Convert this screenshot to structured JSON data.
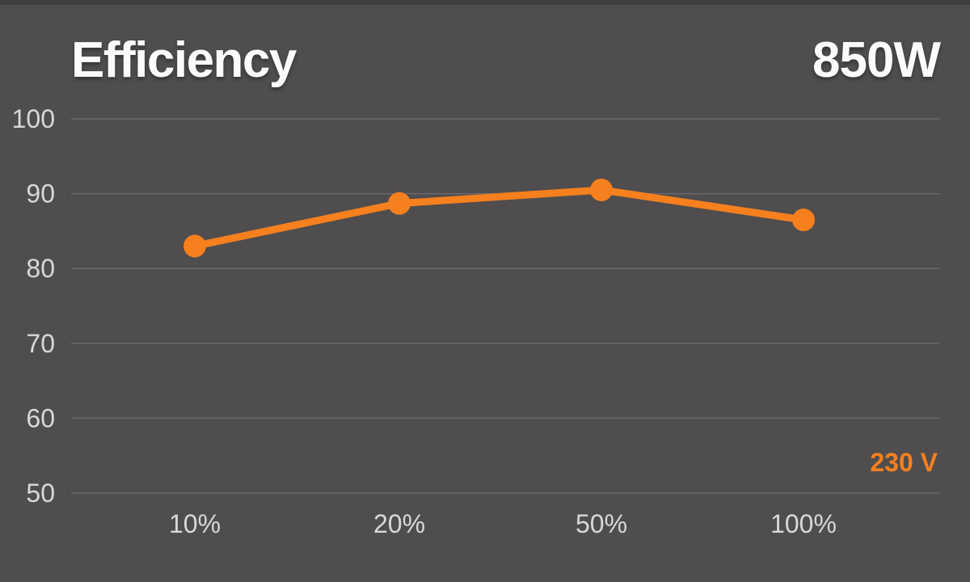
{
  "header": {
    "title": "Efficiency",
    "wattage": "850W"
  },
  "colors": {
    "background": "#4F4D4E",
    "accent_orange": "#F6801E",
    "grid_line": "#757375",
    "tick_text": "#DAD8D7",
    "title_text": "#FBFBFB"
  },
  "chart_data": {
    "type": "line",
    "title": "Efficiency",
    "subtitle": "850W",
    "categories": [
      "10%",
      "20%",
      "50%",
      "100%"
    ],
    "series": [
      {
        "name": "230 V",
        "values": [
          83,
          88.7,
          90.5,
          86.5
        ]
      }
    ],
    "xlabel": "",
    "ylabel": "",
    "ylim": [
      50,
      100
    ],
    "yticks": [
      100,
      90,
      80,
      70,
      60,
      50
    ],
    "grid": "horizontal-only",
    "legend_position": "bottom-right",
    "line_color": "#F6801E",
    "marker": "circle"
  }
}
